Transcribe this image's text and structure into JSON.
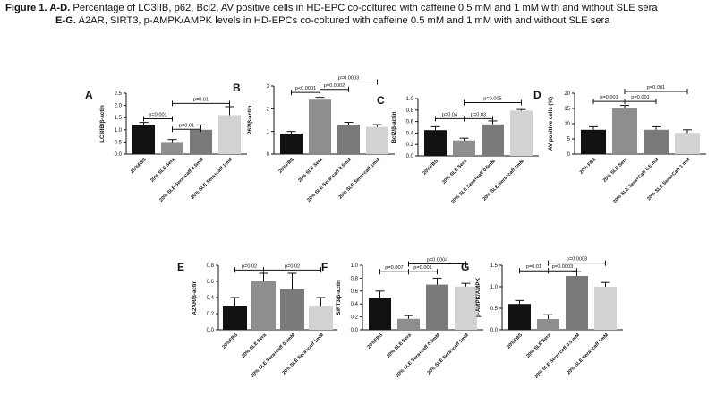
{
  "caption": {
    "line1_bold": "Figure 1. A-D.",
    "line1_text": " Percentage of LC3IIB, p62, Bcl2, AV positive cells in HD-EPC co-coltured with caffeine 0.5 mM and 1 mM with and without SLE sera",
    "line2_bold": "E-G.",
    "line2_text": " A2AR, SIRT3, p-AMPK/AMPK levels in HD-EPCs co-coltured with caffeine 0.5 mM and 1 mM with and without SLE sera"
  },
  "colors": {
    "black": "#111111",
    "dark_gray": "#8e8e8e",
    "mid_gray": "#7a7a7a",
    "light_gray": "#d2d2d2"
  },
  "chart_data": [
    {
      "type": "bar",
      "panel": "A",
      "ylabel": "LC3IIB/β-actin",
      "ylim": [
        0,
        2.5
      ],
      "yticks": [
        "0.0",
        "0.5",
        "1.0",
        "1.5",
        "2.0",
        "2.5"
      ],
      "categories": [
        "20%FBS",
        "20% SLE Sera",
        "20% SLE Sera+caff 0.5mM",
        "20% SLE Sera+caff 1mM"
      ],
      "values": [
        1.2,
        0.5,
        1.0,
        1.6
      ],
      "errors": [
        0.1,
        0.1,
        0.2,
        0.35
      ],
      "annotations": [
        {
          "from": 0,
          "to": 1,
          "text": "p=0.001",
          "at": 1.45
        },
        {
          "from": 1,
          "to": 2,
          "text": "p=0.01",
          "at": 1.02
        },
        {
          "from": 1,
          "to": 3,
          "text": "p=0.01",
          "at": 2.08
        }
      ]
    },
    {
      "type": "bar",
      "panel": "B",
      "ylabel": "P62/β-actin",
      "ylim": [
        0,
        3
      ],
      "yticks": [
        "0",
        "1",
        "2",
        "3"
      ],
      "categories": [
        "20%FBS",
        "20% SLE Sera",
        "20% SLE Sera+caff 0.5mM",
        "20% SLE Sera+caff 1mM"
      ],
      "values": [
        0.9,
        2.4,
        1.3,
        1.2
      ],
      "errors": [
        0.1,
        0.1,
        0.1,
        0.1
      ],
      "annotations": [
        {
          "from": 0,
          "to": 1,
          "text": "p<0.0001",
          "at": 2.72
        },
        {
          "from": 1,
          "to": 2,
          "text": "p=0.0002",
          "at": 2.85
        },
        {
          "from": 1,
          "to": 3,
          "text": "p=0.0003",
          "at": 3.18
        }
      ]
    },
    {
      "type": "bar",
      "panel": "C",
      "ylabel": "Bcl2/β-actin",
      "ylim": [
        0,
        1
      ],
      "yticks": [
        "0.0",
        "0.2",
        "0.4",
        "0.6",
        "0.8",
        "1.0"
      ],
      "categories": [
        "20%FBS",
        "20% SLE Sera",
        "20% SLE Sera+caff 0.5mM",
        "20% SLE Sera+caff 1mM"
      ],
      "values": [
        0.45,
        0.27,
        0.55,
        0.79
      ],
      "errors": [
        0.06,
        0.04,
        0.06,
        0.02
      ],
      "annotations": [
        {
          "from": 0,
          "to": 1,
          "text": "p=0.04",
          "at": 0.65
        },
        {
          "from": 1,
          "to": 2,
          "text": "p=0.03",
          "at": 0.65
        },
        {
          "from": 1,
          "to": 3,
          "text": "p=0.005",
          "at": 0.93
        }
      ]
    },
    {
      "type": "bar",
      "panel": "D",
      "ylabel": "AV positive cells (%)",
      "ylim": [
        0,
        20
      ],
      "yticks": [
        "0",
        "5",
        "10",
        "15",
        "20"
      ],
      "categories": [
        "20% FBS",
        "20% SLE Sera",
        "20% SLE Sera+Caff 0.5 mM",
        "20% SLE Sera+Caff 1 mM"
      ],
      "values": [
        8,
        15,
        8,
        7
      ],
      "errors": [
        1,
        1,
        1,
        1
      ],
      "annotations": [
        {
          "from": 0,
          "to": 1,
          "text": "p=0.001",
          "at": 17.3
        },
        {
          "from": 1,
          "to": 2,
          "text": "p=0.001",
          "at": 17.3
        },
        {
          "from": 1,
          "to": 3,
          "text": "p=0.001",
          "at": 20.6
        }
      ]
    },
    {
      "type": "bar",
      "panel": "E",
      "ylabel": "A2AR/β-actin",
      "ylim": [
        0,
        0.8
      ],
      "yticks": [
        "0.0",
        "0.2",
        "0.4",
        "0.6",
        "0.8"
      ],
      "categories": [
        "20%FBS",
        "20% SLE Sera",
        "20% SLE Sera+caff 0.5mM",
        "20% SLE Sera+caff 1mM"
      ],
      "values": [
        0.3,
        0.6,
        0.5,
        0.3
      ],
      "errors": [
        0.1,
        0.1,
        0.2,
        0.1
      ],
      "annotations": [
        {
          "from": 0,
          "to": 1,
          "text": "p=0.02",
          "at": 0.74
        },
        {
          "from": 1,
          "to": 3,
          "text": "p=0.02",
          "at": 0.74
        }
      ]
    },
    {
      "type": "bar",
      "panel": "F",
      "ylabel": "SIRT3/β-actin",
      "ylim": [
        0,
        1
      ],
      "yticks": [
        "0.0",
        "0.2",
        "0.4",
        "0.6",
        "0.8",
        "1.0"
      ],
      "categories": [
        "20%FBS",
        "20% SLE Sera",
        "20% SLE Sera+caff 0.5mM",
        "20% SLE Sera+caff 1mM"
      ],
      "values": [
        0.5,
        0.17,
        0.7,
        0.67
      ],
      "errors": [
        0.1,
        0.05,
        0.1,
        0.05
      ],
      "annotations": [
        {
          "from": 0,
          "to": 1,
          "text": "p=0.007",
          "at": 0.9
        },
        {
          "from": 1,
          "to": 2,
          "text": "p=0.001",
          "at": 0.9
        },
        {
          "from": 1,
          "to": 3,
          "text": "p=0.0004",
          "at": 1.02
        }
      ]
    },
    {
      "type": "bar",
      "panel": "G",
      "ylabel": "p-AMPK/AMPK",
      "ylim": [
        0,
        1.5
      ],
      "yticks": [
        "0.0",
        "0.5",
        "1.0",
        "1.5"
      ],
      "categories": [
        "20%FBS",
        "20% SLE Sera",
        "20% SLE Sera+caff 0.5 mM",
        "20% SLE Sera+caff 1mM"
      ],
      "values": [
        0.6,
        0.25,
        1.25,
        1.0
      ],
      "errors": [
        0.08,
        0.1,
        0.1,
        0.1
      ],
      "annotations": [
        {
          "from": 0,
          "to": 1,
          "text": "p=0.01",
          "at": 1.37
        },
        {
          "from": 1,
          "to": 2,
          "text": "p=0.0003",
          "at": 1.37
        },
        {
          "from": 1,
          "to": 3,
          "text": "p=0.0008",
          "at": 1.55
        }
      ]
    }
  ]
}
